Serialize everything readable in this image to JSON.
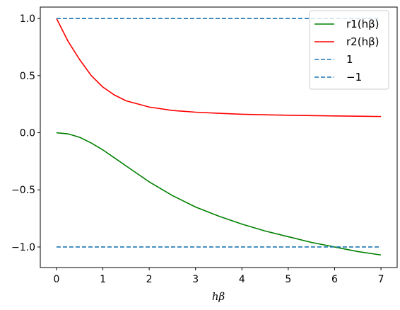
{
  "chart_data": {
    "type": "line",
    "xlabel": "hβ",
    "xlim": [
      -0.35,
      7.35
    ],
    "ylim": [
      -1.18,
      1.1
    ],
    "xticks": [
      0,
      1,
      2,
      3,
      4,
      5,
      6,
      7
    ],
    "yticks": [
      -1.0,
      -0.5,
      0.0,
      0.5,
      1.0
    ],
    "xtick_labels": [
      "0",
      "1",
      "2",
      "3",
      "4",
      "5",
      "6",
      "7"
    ],
    "ytick_labels": [
      "−1.0",
      "−0.5",
      "0.0",
      "0.5",
      "1.0"
    ],
    "grid": false,
    "legend_position": "top-right",
    "series": [
      {
        "name": "r1(hβ)",
        "color": "#008000",
        "style": "solid",
        "x": [
          0,
          0.25,
          0.5,
          0.75,
          1.0,
          1.25,
          1.5,
          2.0,
          2.5,
          3.0,
          3.5,
          4.0,
          4.5,
          5.0,
          5.5,
          6.0,
          6.5,
          7.0
        ],
        "y": [
          0.0,
          -0.01,
          -0.04,
          -0.09,
          -0.15,
          -0.22,
          -0.29,
          -0.43,
          -0.55,
          -0.65,
          -0.73,
          -0.8,
          -0.86,
          -0.91,
          -0.96,
          -1.0,
          -1.04,
          -1.07
        ]
      },
      {
        "name": "r2(hβ)",
        "color": "#ff0000",
        "style": "solid",
        "x": [
          0,
          0.25,
          0.5,
          0.75,
          1.0,
          1.25,
          1.5,
          2.0,
          2.5,
          3.0,
          3.5,
          4.0,
          4.5,
          5.0,
          5.5,
          6.0,
          6.5,
          7.0
        ],
        "y": [
          1.0,
          0.8,
          0.64,
          0.5,
          0.4,
          0.33,
          0.28,
          0.225,
          0.195,
          0.18,
          0.17,
          0.162,
          0.157,
          0.153,
          0.15,
          0.147,
          0.145,
          0.142
        ]
      },
      {
        "name": "1",
        "color": "#1f77b4",
        "style": "dashed",
        "x": [
          0,
          7
        ],
        "y": [
          1.0,
          1.0
        ]
      },
      {
        "name": "−1",
        "color": "#1f77b4",
        "style": "dashed",
        "x": [
          0,
          7
        ],
        "y": [
          -1.0,
          -1.0
        ]
      }
    ]
  }
}
